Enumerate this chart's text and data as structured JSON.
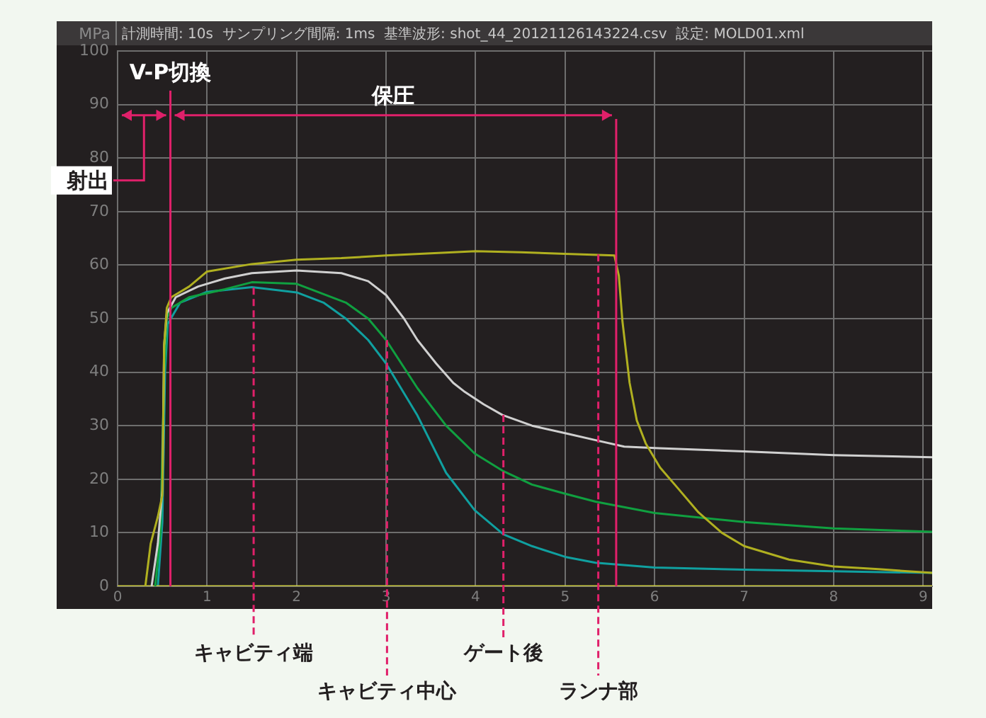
{
  "chart_data": {
    "type": "line",
    "subtitle": "計測時間: 10s  サンプリング間隔: 1ms  基準波形: shot_44_20121126143224.csv  設定: MOLD01.xml",
    "ylabel": "MPa",
    "xlim": [
      0,
      9.1
    ],
    "xticks": [
      0,
      1,
      2,
      3,
      4,
      5,
      6,
      7,
      8,
      9
    ],
    "ylim": [
      0,
      100
    ],
    "yticks": [
      0,
      10,
      20,
      30,
      40,
      50,
      60,
      70,
      80,
      90,
      100
    ],
    "grid": true,
    "legend": false,
    "marker": "none",
    "line_style": "solid",
    "series": [
      {
        "color": "#b0b020",
        "x": [
          0.31,
          0.37,
          0.45,
          0.5,
          0.52,
          0.55,
          0.6,
          0.8,
          1.0,
          1.5,
          2.0,
          2.5,
          3.0,
          3.5,
          4.0,
          4.5,
          5.0,
          5.55,
          5.6,
          5.64,
          5.72,
          5.8,
          5.9,
          6.06,
          6.25,
          6.49,
          6.75,
          7.0,
          7.5,
          8.0,
          8.5,
          9.1
        ],
        "values": [
          0,
          8,
          13,
          17,
          45,
          52,
          54,
          56,
          58.8,
          60.2,
          61,
          61.3,
          61.8,
          62.2,
          62.6,
          62.4,
          62.1,
          61.8,
          58,
          49.5,
          38,
          31,
          26.7,
          22.2,
          18.5,
          13.8,
          10,
          7.5,
          5,
          3.7,
          3.2,
          2.5
        ]
      },
      {
        "color": "#d0d0d0",
        "x": [
          0.38,
          0.45,
          0.5,
          0.52,
          0.55,
          0.65,
          0.9,
          1.2,
          1.5,
          2.0,
          2.5,
          2.8,
          3.0,
          3.2,
          3.35,
          3.56,
          3.75,
          3.88,
          4.09,
          4.3,
          4.63,
          5.0,
          5.34,
          5.66,
          6.05,
          7.0,
          8.0,
          9.1
        ],
        "values": [
          0,
          8,
          18,
          45,
          51,
          54,
          56,
          57.5,
          58.5,
          59,
          58.5,
          57,
          54.4,
          50,
          46,
          41.6,
          38,
          36.3,
          34,
          32,
          30,
          28.6,
          27.3,
          26.1,
          25.8,
          25.2,
          24.5,
          24.1
        ]
      },
      {
        "color": "#10a040",
        "x": [
          0.42,
          0.48,
          0.52,
          0.55,
          0.6,
          0.8,
          1.2,
          1.5,
          2.0,
          2.55,
          2.8,
          3.0,
          3.35,
          3.67,
          3.99,
          4.31,
          4.63,
          5.0,
          5.34,
          6.0,
          7.0,
          8.0,
          9.1
        ],
        "values": [
          0,
          10,
          40,
          50,
          52,
          54,
          55.5,
          56.8,
          56.5,
          53,
          50,
          46,
          37,
          30,
          24.8,
          21.5,
          19,
          17.3,
          15.8,
          13.7,
          12,
          10.8,
          10.2
        ]
      },
      {
        "color": "#c8c840",
        "x": [
          0,
          9.1
        ],
        "values": [
          0,
          0
        ]
      },
      {
        "color": "#10a0a0",
        "x": [
          0.45,
          0.5,
          0.53,
          0.56,
          0.7,
          1.0,
          1.5,
          2.0,
          2.3,
          2.55,
          2.8,
          3.0,
          3.35,
          3.67,
          3.99,
          4.31,
          4.63,
          5.0,
          5.34,
          6.0,
          7.0,
          8.0,
          9.1
        ],
        "values": [
          0,
          12,
          40,
          49,
          53,
          55,
          55.9,
          54.9,
          53,
          50,
          46,
          41.6,
          31.9,
          21.2,
          14.2,
          9.7,
          7.5,
          5.5,
          4.4,
          3.5,
          3.1,
          2.8,
          2.5
        ]
      }
    ],
    "ref_lines": [
      {
        "axis": "x",
        "value": 0.59,
        "label": "V-P切換",
        "color": "#e0206a"
      },
      {
        "axis": "x",
        "value": 5.57,
        "color": "#e0206a"
      }
    ],
    "annotations": [
      "射出",
      "保圧",
      {
        "text": "キャビティ端",
        "x": 1.52,
        "y": 55.8
      },
      {
        "text": "キャビティ中心",
        "x": 3.01,
        "y": 46
      },
      {
        "text": "ゲート後",
        "x": 4.31,
        "y": 32
      },
      {
        "text": "ランナ部",
        "x": 5.37,
        "y": 62
      }
    ]
  }
}
